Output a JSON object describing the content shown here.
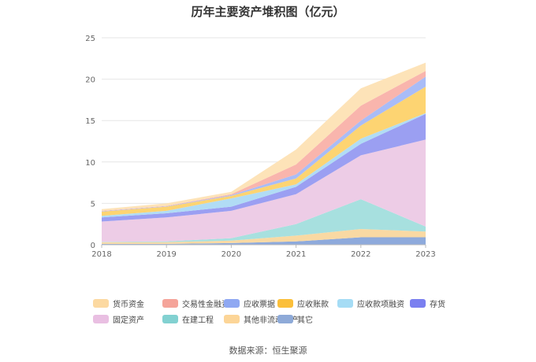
{
  "chart_data": {
    "type": "area",
    "stacked": true,
    "title": "历年主要资产堆积图（亿元）",
    "x": [
      "2018",
      "2019",
      "2020",
      "2021",
      "2022",
      "2023"
    ],
    "ylim": [
      0,
      25
    ],
    "yticks": [
      0,
      5,
      10,
      15,
      20,
      25
    ],
    "grid": true,
    "legend_position": "bottom",
    "series": [
      {
        "name": "其它",
        "color": "#8eaadc",
        "values": [
          0.1,
          0.1,
          0.2,
          0.4,
          0.9,
          0.9
        ]
      },
      {
        "name": "其他非流动资产",
        "color": "#f9d9a3",
        "values": [
          0.2,
          0.2,
          0.3,
          0.7,
          1.0,
          0.7
        ]
      },
      {
        "name": "在建工程",
        "color": "#a7e0df",
        "values": [
          0.05,
          0.1,
          0.3,
          1.4,
          3.6,
          0.6
        ]
      },
      {
        "name": "固定资产",
        "color": "#edcce6",
        "values": [
          2.45,
          2.9,
          3.3,
          3.6,
          5.3,
          10.5
        ]
      },
      {
        "name": "存货",
        "color": "#9b9ff2",
        "values": [
          0.5,
          0.5,
          0.5,
          0.9,
          1.4,
          3.1
        ]
      },
      {
        "name": "应收款项融资",
        "color": "#b1dcf5",
        "values": [
          0.2,
          0.3,
          1.0,
          0.3,
          0.6,
          0.1
        ]
      },
      {
        "name": "应收账款",
        "color": "#fdd472",
        "values": [
          0.5,
          0.5,
          0.3,
          0.7,
          1.6,
          3.2
        ]
      },
      {
        "name": "应收票据",
        "color": "#a9bcf7",
        "values": [
          0.05,
          0.05,
          0.1,
          0.5,
          0.6,
          1.2
        ]
      },
      {
        "name": "交易性金融资产",
        "color": "#f9b5ad",
        "values": [
          0.05,
          0.05,
          0.1,
          1.2,
          1.8,
          0.7
        ]
      },
      {
        "name": "货币资金",
        "color": "#fde3b8",
        "values": [
          0.2,
          0.3,
          0.3,
          1.8,
          2.1,
          1.0
        ]
      }
    ]
  },
  "legend": {
    "items": [
      {
        "label": "货币资金",
        "color": "#fcd9a1"
      },
      {
        "label": "交易性金融资产",
        "color": "#f5a49a"
      },
      {
        "label": "应收票据",
        "color": "#8fa8f2"
      },
      {
        "label": "应收账款",
        "color": "#fbbf3a"
      },
      {
        "label": "应收款项融资",
        "color": "#a5dcf5"
      },
      {
        "label": "存货",
        "color": "#7a7ff0"
      },
      {
        "label": "固定资产",
        "color": "#e9bfe2"
      },
      {
        "label": "在建工程",
        "color": "#82d1d1"
      },
      {
        "label": "其他非流动资产",
        "color": "#fcd597"
      },
      {
        "label": "其它",
        "color": "#8eaad8"
      }
    ]
  },
  "footer": {
    "source": "数据来源：恒生聚源"
  }
}
